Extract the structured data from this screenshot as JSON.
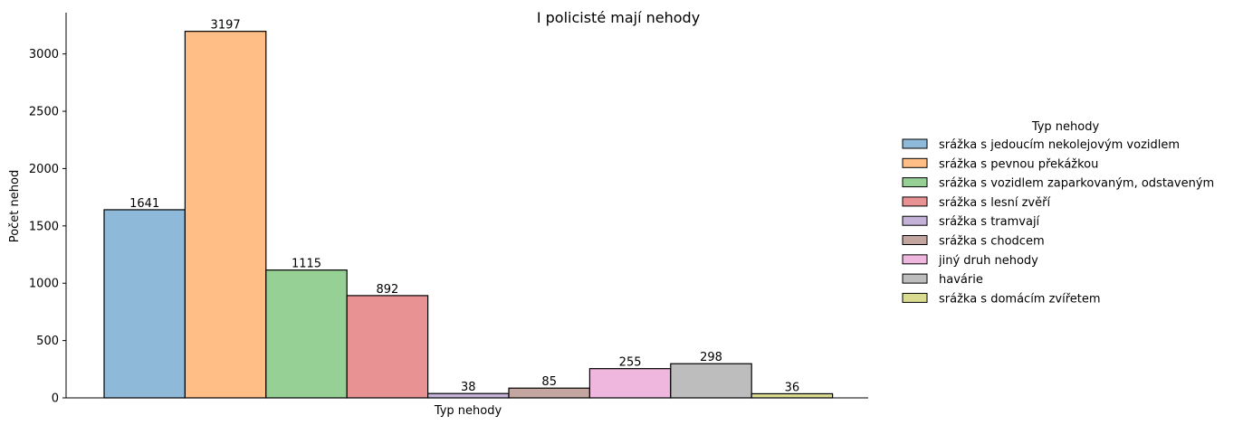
{
  "chart_data": {
    "type": "bar",
    "title": "I policisté mají nehody",
    "xlabel": "Typ nehody",
    "ylabel": "Počet nehod",
    "ylim": [
      0,
      3360
    ],
    "yticks": [
      0,
      500,
      1000,
      1500,
      2000,
      2500,
      3000
    ],
    "grid": false,
    "legend": {
      "title": "Typ nehody",
      "placement": "right"
    },
    "series": [
      {
        "name": "srážka s jedoucím nekolejovým vozidlem",
        "value": 1641,
        "label": "1641",
        "color": "#8fb9d9"
      },
      {
        "name": "srážka s pevnou překážkou",
        "value": 3197,
        "label": "3197",
        "color": "#ffbe86"
      },
      {
        "name": "srážka s vozidlem zaparkovaným, odstaveným",
        "value": 1115,
        "label": "1115",
        "color": "#96d095"
      },
      {
        "name": "srážka s lesní zvěří",
        "value": 892,
        "label": "892",
        "color": "#e89294"
      },
      {
        "name": "srážka s tramvají",
        "value": 38,
        "label": "38",
        "color": "#c4b2d8"
      },
      {
        "name": "srážka s chodcem",
        "value": 85,
        "label": "85",
        "color": "#c3a69f"
      },
      {
        "name": "jiný druh nehody",
        "value": 255,
        "label": "255",
        "color": "#efb7dd"
      },
      {
        "name": "havárie",
        "value": 298,
        "label": "298",
        "color": "#bdbdbd"
      },
      {
        "name": "srážka s domácím zvířetem",
        "value": 36,
        "label": "36",
        "color": "#d9dc90"
      }
    ]
  }
}
